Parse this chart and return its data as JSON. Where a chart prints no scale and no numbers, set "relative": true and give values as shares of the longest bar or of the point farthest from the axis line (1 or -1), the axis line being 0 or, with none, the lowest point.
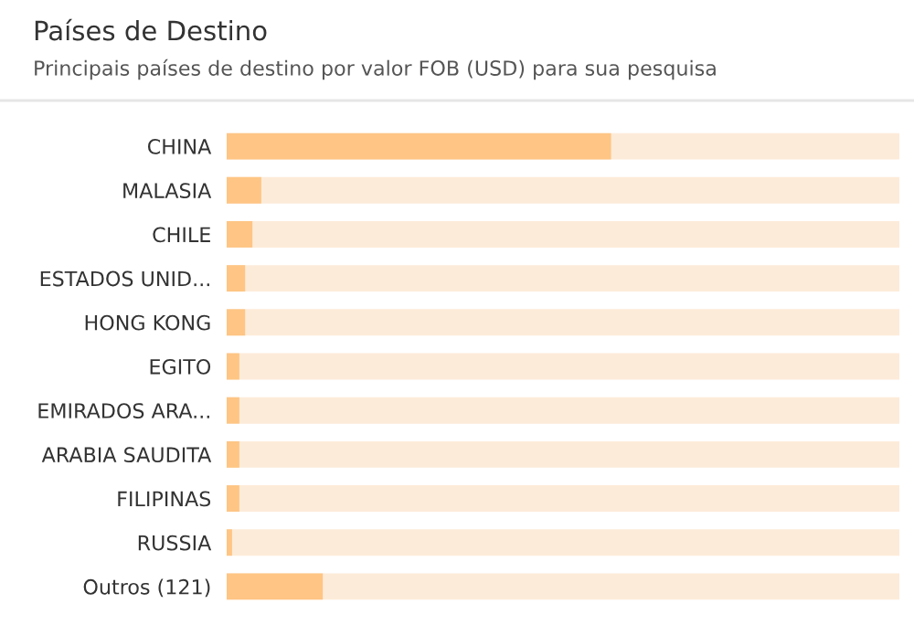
{
  "chart_data": {
    "type": "bar",
    "orientation": "horizontal",
    "relative": true,
    "title": "Países de Destino",
    "subtitle": "Principais países de destino por valor FOB (USD) para sua pesquisa",
    "categories": [
      "CHINA",
      "MALASIA",
      "CHILE",
      "ESTADOS UNID...",
      "HONG KONG",
      "EGITO",
      "EMIRADOS ARA...",
      "ARABIA SAUDITA",
      "FILIPINAS",
      "RUSSIA",
      "Outros (121)"
    ],
    "values": [
      1,
      0.09,
      0.067,
      0.048,
      0.048,
      0.033,
      0.033,
      0.033,
      0.033,
      0.014,
      0.25
    ],
    "color": "#fec584",
    "grid": false,
    "legend": false
  }
}
